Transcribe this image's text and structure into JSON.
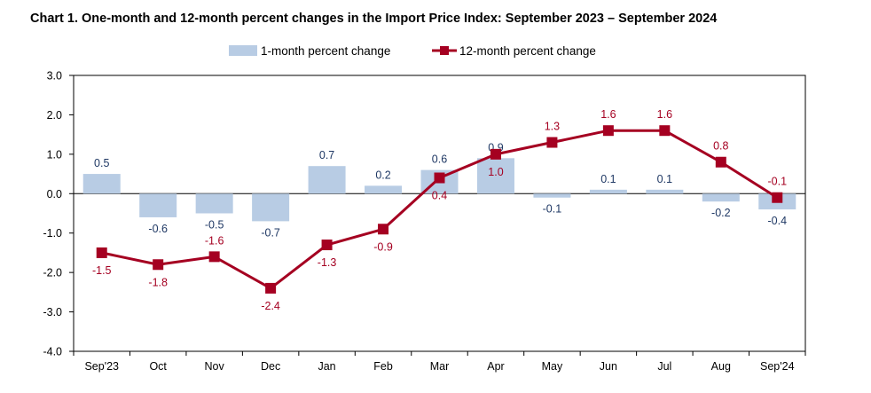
{
  "chart_data": {
    "type": "bar+line",
    "title": "Chart 1. One-month and 12-month percent changes in the Import Price Index: September 2023 – September 2024",
    "categories": [
      "Sep'23",
      "Oct",
      "Nov",
      "Dec",
      "Jan",
      "Feb",
      "Mar",
      "Apr",
      "May",
      "Jun",
      "Jul",
      "Aug",
      "Sep'24"
    ],
    "series": [
      {
        "name": "1-month percent change",
        "kind": "bar",
        "color": "#b8cce4",
        "label_color": "#1f3864",
        "values": [
          0.5,
          -0.6,
          -0.5,
          -0.7,
          0.7,
          0.2,
          0.6,
          0.9,
          -0.1,
          0.1,
          0.1,
          -0.2,
          -0.4
        ],
        "labels": [
          "0.5",
          "-0.6",
          "-0.5",
          "-0.7",
          "0.7",
          "0.2",
          "0.6",
          "0.9",
          "-0.1",
          "0.1",
          "0.1",
          "-0.2",
          "-0.4"
        ]
      },
      {
        "name": "12-month percent change",
        "kind": "line",
        "color": "#a50021",
        "label_color": "#a50021",
        "values": [
          -1.5,
          -1.8,
          -1.6,
          -2.4,
          -1.3,
          -0.9,
          0.4,
          1.0,
          1.3,
          1.6,
          1.6,
          0.8,
          -0.1
        ],
        "labels": [
          "-1.5",
          "-1.8",
          "-1.6",
          "-2.4",
          "-1.3",
          "-0.9",
          "0.4",
          "1.0",
          "1.3",
          "1.6",
          "1.6",
          "0.8",
          "-0.1"
        ]
      }
    ],
    "y_ticks": [
      3.0,
      2.0,
      1.0,
      0.0,
      -1.0,
      -2.0,
      -3.0,
      -4.0
    ],
    "y_tick_labels": [
      "3.0",
      "2.0",
      "1.0",
      "0.0",
      "-1.0",
      "-2.0",
      "-3.0",
      "-4.0"
    ],
    "ylim": [
      -4.0,
      3.0
    ],
    "xlabel": "",
    "ylabel": "",
    "grid": false,
    "legend_position": "top-center"
  }
}
